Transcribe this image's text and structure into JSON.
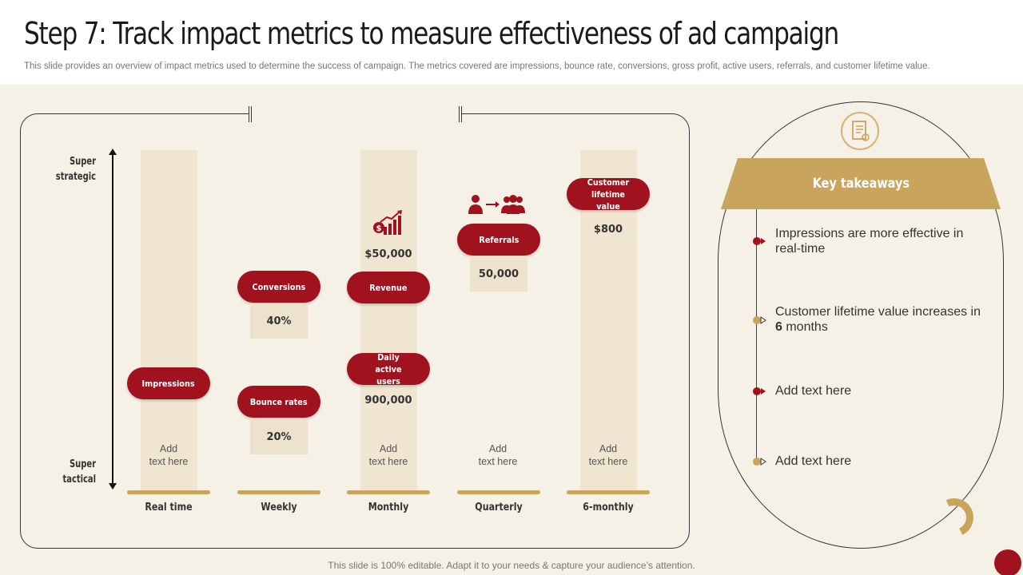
{
  "title": "Step 7: Track impact metrics to measure effectiveness of ad campaign",
  "subtitle": "This slide provides an overview of impact metrics used to determine the success of campaign. The metrics covered are impressions, bounce rate, conversions, gross profit, active users, referrals, and customer lifetime value.",
  "axis": {
    "top": "Super\nstrategic",
    "bottom": "Super\ntactical"
  },
  "columns": [
    {
      "label": "Real time",
      "add_text": "Add\ntext here"
    },
    {
      "label": "Weekly"
    },
    {
      "label": "Monthly",
      "add_text": "Add\ntext here"
    },
    {
      "label": "Quarterly",
      "add_text": "Add\ntext here"
    },
    {
      "label": "6-monthly",
      "add_text": "Add\ntext here"
    }
  ],
  "metrics": {
    "impressions": {
      "label": "Impressions"
    },
    "conversions": {
      "label": "Conversions",
      "value": "40%"
    },
    "bounce_rates": {
      "label": "Bounce rates",
      "value": "20%"
    },
    "revenue": {
      "label": "Revenue",
      "value": "$50,000"
    },
    "daily_active_users": {
      "label": "Daily active users",
      "value": "900,000"
    },
    "referrals": {
      "label": "Referrals",
      "value": "50,000"
    },
    "customer_lifetime_value": {
      "label": "Customer lifetime value",
      "value": "$800"
    }
  },
  "key_takeaways": {
    "title": "Key takeaways",
    "items": [
      {
        "text": "Impressions are more effective in real-time"
      },
      {
        "text_before": "Customer lifetime value increases in ",
        "bold": "6",
        "text_after": " months"
      },
      {
        "text": "Add text here"
      },
      {
        "text": "Add text here"
      }
    ]
  },
  "footer": "This slide is 100% editable. Adapt it to your needs & capture your audience’s attention.",
  "colors": {
    "accent_red": "#a0121e",
    "accent_gold": "#c9a45c",
    "panel_bg": "#f6f1e7",
    "column_bg": "#f0e5d0"
  },
  "icons": [
    "growth-chart-icon",
    "referral-people-icon",
    "document-icon"
  ]
}
